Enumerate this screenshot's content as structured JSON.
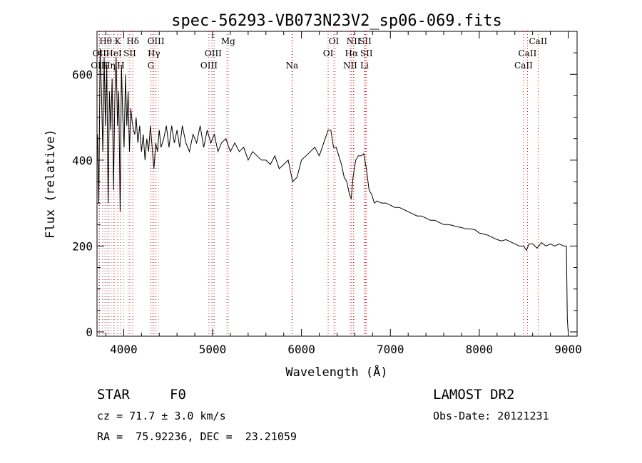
{
  "chart_data": {
    "type": "line",
    "title": "spec-56293-VB073N23V2_sp06-069.fits",
    "xlabel": "Wavelength (Å)",
    "ylabel": "Flux (relative)",
    "xlim": [
      3700,
      9100
    ],
    "ylim": [
      -10,
      700
    ],
    "x_ticks": [
      4000,
      5000,
      6000,
      7000,
      8000,
      9000
    ],
    "y_ticks": [
      0,
      200,
      400,
      600
    ],
    "x_minor_step": 200,
    "y_minor_step": 50,
    "series": [
      {
        "name": "flux",
        "x": [
          3705,
          3720,
          3735,
          3750,
          3765,
          3780,
          3795,
          3810,
          3825,
          3840,
          3855,
          3870,
          3885,
          3900,
          3915,
          3930,
          3945,
          3960,
          3975,
          3990,
          4005,
          4020,
          4035,
          4050,
          4065,
          4080,
          4095,
          4110,
          4125,
          4140,
          4160,
          4180,
          4200,
          4220,
          4240,
          4260,
          4280,
          4300,
          4320,
          4340,
          4360,
          4380,
          4400,
          4420,
          4450,
          4480,
          4510,
          4540,
          4570,
          4600,
          4630,
          4660,
          4700,
          4740,
          4780,
          4820,
          4860,
          4900,
          4940,
          4980,
          5020,
          5060,
          5100,
          5150,
          5200,
          5250,
          5300,
          5350,
          5400,
          5450,
          5500,
          5550,
          5600,
          5650,
          5700,
          5750,
          5800,
          5850,
          5900,
          5950,
          6000,
          6050,
          6100,
          6150,
          6200,
          6250,
          6300,
          6330,
          6360,
          6390,
          6420,
          6450,
          6480,
          6510,
          6540,
          6560,
          6580,
          6610,
          6640,
          6670,
          6700,
          6730,
          6760,
          6790,
          6820,
          6850,
          6900,
          6950,
          7000,
          7050,
          7100,
          7150,
          7200,
          7250,
          7300,
          7350,
          7400,
          7450,
          7500,
          7550,
          7600,
          7650,
          7700,
          7750,
          7800,
          7850,
          7900,
          7950,
          8000,
          8050,
          8100,
          8150,
          8200,
          8250,
          8300,
          8350,
          8400,
          8450,
          8500,
          8530,
          8560,
          8600,
          8650,
          8700,
          8750,
          8800,
          8850,
          8900,
          8950,
          8980,
          8990,
          9000
        ],
        "y": [
          460,
          300,
          660,
          560,
          420,
          640,
          480,
          620,
          300,
          560,
          470,
          590,
          330,
          540,
          640,
          480,
          560,
          280,
          620,
          500,
          430,
          600,
          480,
          560,
          420,
          520,
          490,
          470,
          460,
          500,
          440,
          480,
          420,
          460,
          400,
          450,
          420,
          480,
          430,
          380,
          440,
          420,
          470,
          430,
          450,
          480,
          430,
          480,
          440,
          470,
          430,
          480,
          440,
          420,
          460,
          440,
          480,
          430,
          470,
          440,
          460,
          420,
          440,
          450,
          420,
          440,
          420,
          430,
          400,
          420,
          410,
          400,
          400,
          390,
          410,
          380,
          390,
          400,
          350,
          360,
          400,
          410,
          420,
          430,
          410,
          440,
          470,
          470,
          430,
          430,
          410,
          390,
          360,
          350,
          320,
          310,
          360,
          400,
          410,
          410,
          415,
          380,
          330,
          320,
          300,
          305,
          300,
          300,
          295,
          290,
          290,
          285,
          280,
          275,
          270,
          270,
          265,
          260,
          260,
          255,
          250,
          250,
          248,
          245,
          243,
          240,
          240,
          238,
          230,
          228,
          225,
          220,
          215,
          212,
          215,
          210,
          205,
          200,
          200,
          190,
          205,
          205,
          195,
          208,
          200,
          205,
          200,
          205,
          200,
          200,
          30,
          0
        ]
      }
    ],
    "line_markers": {
      "red": [
        {
          "label": "Hθ",
          "x": 3797,
          "row": 1
        },
        {
          "label": "OII",
          "x": 3727,
          "row": 2
        },
        {
          "label": "OIII",
          "x": 3726,
          "row": 3
        },
        {
          "label": "K",
          "x": 3934,
          "row": 1
        },
        {
          "label": "HeI",
          "x": 3889,
          "row": 2
        },
        {
          "label": "Hη",
          "x": 3835,
          "row": 3
        },
        {
          "label": "SII",
          "x": 4069,
          "row": 2
        },
        {
          "label": "H",
          "x": 3968,
          "row": 3
        },
        {
          "label": "Hδ",
          "x": 4102,
          "row": 1
        },
        {
          "label": "OIII",
          "x": 4363,
          "row": 1
        },
        {
          "label": "Hγ",
          "x": 4340,
          "row": 2
        },
        {
          "label": "G",
          "x": 4305,
          "row": 3
        },
        {
          "label": "Mg",
          "x": 5175,
          "row": 1
        },
        {
          "label": "OIII",
          "x": 5007,
          "row": 2
        },
        {
          "label": "OIII",
          "x": 4959,
          "row": 3
        },
        {
          "label": "Na",
          "x": 5893,
          "row": 3
        },
        {
          "label": "OI",
          "x": 6364,
          "row": 1
        },
        {
          "label": "OI",
          "x": 6300,
          "row": 2
        },
        {
          "label": "NII",
          "x": 6585,
          "row": 1
        },
        {
          "label": "SII",
          "x": 6717,
          "row": 1
        },
        {
          "label": "Hα",
          "x": 6563,
          "row": 2
        },
        {
          "label": "SII",
          "x": 6731,
          "row": 2
        },
        {
          "label": "NII",
          "x": 6548,
          "row": 3
        },
        {
          "label": "Li",
          "x": 6708,
          "row": 3
        },
        {
          "label": "CaII",
          "x": 8662,
          "row": 1
        },
        {
          "label": "CaII",
          "x": 8542,
          "row": 2
        },
        {
          "label": "CaII",
          "x": 8498,
          "row": 3
        }
      ],
      "gray": [
        3760,
        3780,
        3815,
        3860,
        3900,
        4000,
        4050,
        4320,
        4390,
        4990,
        5020,
        5160,
        5900,
        6380,
        6590,
        6720
      ]
    },
    "info": {
      "object_class": "STAR",
      "subclass": "F0",
      "survey": "LAMOST DR2",
      "cz": "cz = 71.7 ± 3.0 km/s",
      "obs_date": "Obs-Date: 20121231",
      "coords": "RA =  75.92236, DEC =  23.21059"
    },
    "colors": {
      "line_marker": "#ff0000",
      "gray_marker": "#888888",
      "spectrum": "#000000"
    }
  }
}
